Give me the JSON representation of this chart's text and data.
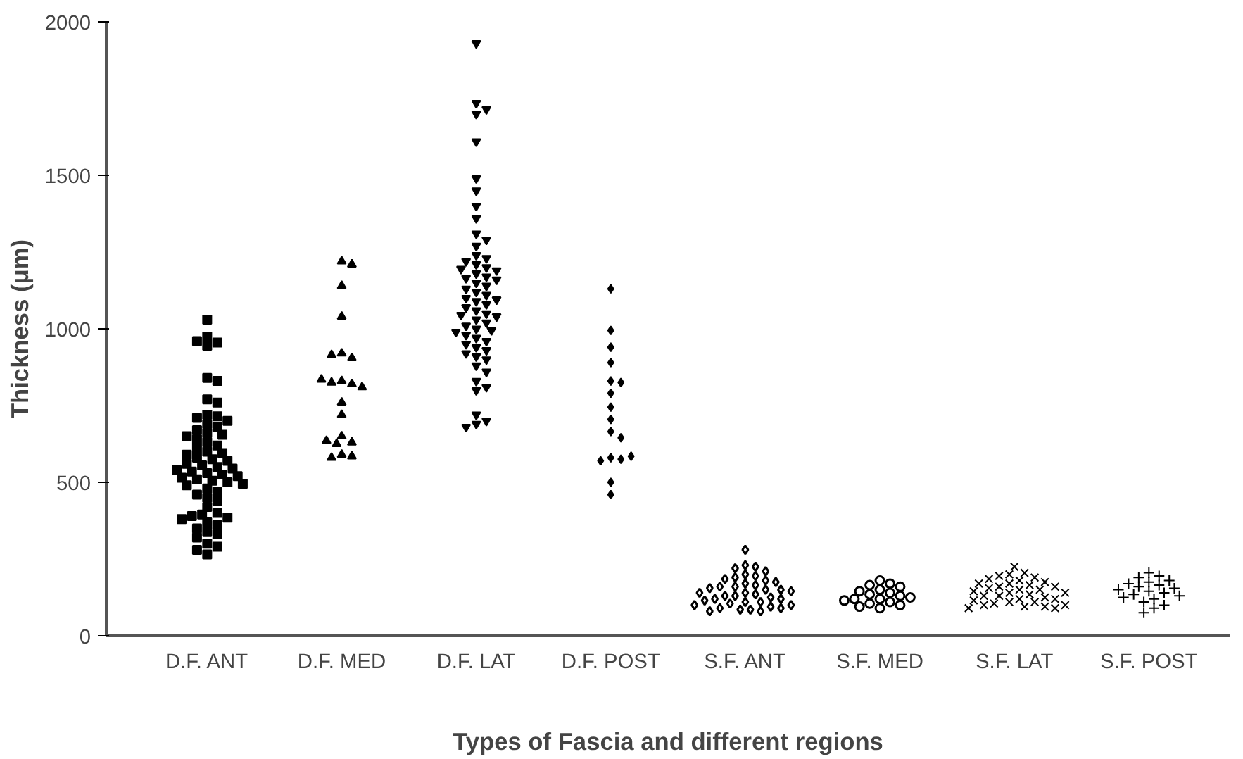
{
  "chart_data": {
    "type": "scatter",
    "xlabel": "Types of Fascia and different regions",
    "ylabel": "Thickness (μm)",
    "categories": [
      "D.F. ANT",
      "D.F. MED",
      "D.F. LAT",
      "D.F. POST",
      "S.F. ANT",
      "S.F. MED",
      "S.F. LAT",
      "S.F. POST"
    ],
    "ylim": [
      0,
      2000
    ],
    "yticks": [
      0,
      500,
      1000,
      1500,
      2000
    ],
    "grid": false,
    "series": [
      {
        "color": "#000000",
        "marker": "square",
        "x": [
          "D.F. ANT",
          "D.F. ANT",
          "D.F. ANT",
          "D.F. ANT",
          "D.F. ANT",
          "D.F. ANT",
          "D.F. ANT",
          "D.F. ANT",
          "D.F. ANT",
          "D.F. ANT",
          "D.F. ANT",
          "D.F. ANT",
          "D.F. ANT",
          "D.F. ANT",
          "D.F. ANT",
          "D.F. ANT",
          "D.F. ANT",
          "D.F. ANT",
          "D.F. ANT",
          "D.F. ANT",
          "D.F. ANT",
          "D.F. ANT",
          "D.F. ANT",
          "D.F. ANT",
          "D.F. ANT",
          "D.F. ANT",
          "D.F. ANT",
          "D.F. ANT",
          "D.F. ANT",
          "D.F. ANT",
          "D.F. ANT",
          "D.F. ANT",
          "D.F. ANT",
          "D.F. ANT",
          "D.F. ANT",
          "D.F. ANT",
          "D.F. ANT",
          "D.F. ANT",
          "D.F. ANT",
          "D.F. ANT",
          "D.F. ANT",
          "D.F. ANT",
          "D.F. ANT",
          "D.F. ANT",
          "D.F. ANT",
          "D.F. ANT",
          "D.F. ANT",
          "D.F. ANT",
          "D.F. ANT",
          "D.F. ANT",
          "D.F. ANT",
          "D.F. ANT",
          "D.F. ANT",
          "D.F. ANT",
          "D.F. ANT",
          "D.F. ANT",
          "D.F. ANT",
          "D.F. ANT",
          "D.F. ANT",
          "D.F. ANT",
          "D.F. ANT",
          "D.F. ANT",
          "D.F. ANT",
          "D.F. ANT",
          "D.F. ANT"
        ],
        "values": [
          1030,
          975,
          955,
          945,
          960,
          840,
          830,
          770,
          760,
          720,
          715,
          710,
          700,
          690,
          680,
          670,
          660,
          655,
          650,
          640,
          630,
          620,
          610,
          600,
          595,
          590,
          580,
          575,
          570,
          560,
          555,
          550,
          545,
          540,
          535,
          530,
          525,
          520,
          515,
          510,
          505,
          500,
          495,
          490,
          480,
          470,
          460,
          450,
          440,
          420,
          400,
          395,
          390,
          385,
          380,
          370,
          360,
          350,
          340,
          330,
          320,
          300,
          290,
          280,
          265
        ]
      },
      {
        "color": "#000000",
        "marker": "triangle",
        "x": [
          "D.F. MED",
          "D.F. MED",
          "D.F. MED",
          "D.F. MED",
          "D.F. MED",
          "D.F. MED",
          "D.F. MED",
          "D.F. MED",
          "D.F. MED",
          "D.F. MED",
          "D.F. MED",
          "D.F. MED",
          "D.F. MED",
          "D.F. MED",
          "D.F. MED",
          "D.F. MED",
          "D.F. MED",
          "D.F. MED",
          "D.F. MED",
          "D.F. MED",
          "D.F. MED"
        ],
        "values": [
          1220,
          1210,
          1140,
          1040,
          920,
          905,
          915,
          830,
          820,
          825,
          810,
          835,
          760,
          720,
          650,
          630,
          625,
          635,
          590,
          585,
          580
        ]
      },
      {
        "color": "#000000",
        "marker": "triangle_down",
        "x": [
          "D.F. LAT",
          "D.F. LAT",
          "D.F. LAT",
          "D.F. LAT",
          "D.F. LAT",
          "D.F. LAT",
          "D.F. LAT",
          "D.F. LAT",
          "D.F. LAT",
          "D.F. LAT",
          "D.F. LAT",
          "D.F. LAT",
          "D.F. LAT",
          "D.F. LAT",
          "D.F. LAT",
          "D.F. LAT",
          "D.F. LAT",
          "D.F. LAT",
          "D.F. LAT",
          "D.F. LAT",
          "D.F. LAT",
          "D.F. LAT",
          "D.F. LAT",
          "D.F. LAT",
          "D.F. LAT",
          "D.F. LAT",
          "D.F. LAT",
          "D.F. LAT",
          "D.F. LAT",
          "D.F. LAT",
          "D.F. LAT",
          "D.F. LAT",
          "D.F. LAT",
          "D.F. LAT",
          "D.F. LAT",
          "D.F. LAT",
          "D.F. LAT",
          "D.F. LAT",
          "D.F. LAT",
          "D.F. LAT",
          "D.F. LAT",
          "D.F. LAT",
          "D.F. LAT",
          "D.F. LAT",
          "D.F. LAT",
          "D.F. LAT",
          "D.F. LAT",
          "D.F. LAT",
          "D.F. LAT",
          "D.F. LAT",
          "D.F. LAT",
          "D.F. LAT",
          "D.F. LAT",
          "D.F. LAT",
          "D.F. LAT",
          "D.F. LAT",
          "D.F. LAT",
          "D.F. LAT",
          "D.F. LAT",
          "D.F. LAT",
          "D.F. LAT"
        ],
        "values": [
          1930,
          1735,
          1715,
          1700,
          1610,
          1490,
          1450,
          1400,
          1360,
          1310,
          1290,
          1270,
          1240,
          1230,
          1220,
          1210,
          1200,
          1195,
          1190,
          1180,
          1170,
          1165,
          1160,
          1150,
          1140,
          1130,
          1120,
          1110,
          1100,
          1095,
          1090,
          1080,
          1070,
          1060,
          1050,
          1045,
          1040,
          1030,
          1020,
          1010,
          1000,
          995,
          990,
          980,
          970,
          960,
          950,
          940,
          930,
          920,
          910,
          900,
          880,
          860,
          830,
          810,
          800,
          720,
          700,
          690,
          680
        ]
      },
      {
        "color": "#000000",
        "marker": "diamond",
        "x": [
          "D.F. POST",
          "D.F. POST",
          "D.F. POST",
          "D.F. POST",
          "D.F. POST",
          "D.F. POST",
          "D.F. POST",
          "D.F. POST",
          "D.F. POST",
          "D.F. POST",
          "D.F. POST",
          "D.F. POST",
          "D.F. POST",
          "D.F. POST",
          "D.F. POST",
          "D.F. POST",
          "D.F. POST"
        ],
        "values": [
          1130,
          995,
          940,
          890,
          830,
          825,
          790,
          745,
          705,
          665,
          645,
          580,
          575,
          570,
          585,
          500,
          460
        ]
      },
      {
        "color": "#000000",
        "marker": "diamond_open",
        "x": [
          "S.F. ANT",
          "S.F. ANT",
          "S.F. ANT",
          "S.F. ANT",
          "S.F. ANT",
          "S.F. ANT",
          "S.F. ANT",
          "S.F. ANT",
          "S.F. ANT",
          "S.F. ANT",
          "S.F. ANT",
          "S.F. ANT",
          "S.F. ANT",
          "S.F. ANT",
          "S.F. ANT",
          "S.F. ANT",
          "S.F. ANT",
          "S.F. ANT",
          "S.F. ANT",
          "S.F. ANT",
          "S.F. ANT",
          "S.F. ANT",
          "S.F. ANT",
          "S.F. ANT",
          "S.F. ANT",
          "S.F. ANT",
          "S.F. ANT",
          "S.F. ANT",
          "S.F. ANT",
          "S.F. ANT",
          "S.F. ANT",
          "S.F. ANT",
          "S.F. ANT",
          "S.F. ANT",
          "S.F. ANT",
          "S.F. ANT",
          "S.F. ANT",
          "S.F. ANT",
          "S.F. ANT",
          "S.F. ANT"
        ],
        "values": [
          280,
          230,
          225,
          220,
          210,
          200,
          195,
          190,
          185,
          180,
          175,
          170,
          165,
          160,
          160,
          155,
          150,
          150,
          145,
          140,
          140,
          135,
          130,
          130,
          125,
          120,
          120,
          115,
          110,
          110,
          105,
          100,
          100,
          95,
          90,
          90,
          85,
          85,
          80,
          80
        ]
      },
      {
        "color": "#000000",
        "marker": "circle_open",
        "x": [
          "S.F. MED",
          "S.F. MED",
          "S.F. MED",
          "S.F. MED",
          "S.F. MED",
          "S.F. MED",
          "S.F. MED",
          "S.F. MED",
          "S.F. MED",
          "S.F. MED",
          "S.F. MED",
          "S.F. MED",
          "S.F. MED",
          "S.F. MED",
          "S.F. MED",
          "S.F. MED",
          "S.F. MED",
          "S.F. MED"
        ],
        "values": [
          180,
          170,
          165,
          160,
          150,
          145,
          140,
          135,
          130,
          125,
          120,
          120,
          115,
          110,
          105,
          100,
          95,
          90
        ]
      },
      {
        "color": "#000000",
        "marker": "x",
        "x": [
          "S.F. LAT",
          "S.F. LAT",
          "S.F. LAT",
          "S.F. LAT",
          "S.F. LAT",
          "S.F. LAT",
          "S.F. LAT",
          "S.F. LAT",
          "S.F. LAT",
          "S.F. LAT",
          "S.F. LAT",
          "S.F. LAT",
          "S.F. LAT",
          "S.F. LAT",
          "S.F. LAT",
          "S.F. LAT",
          "S.F. LAT",
          "S.F. LAT",
          "S.F. LAT",
          "S.F. LAT",
          "S.F. LAT",
          "S.F. LAT",
          "S.F. LAT",
          "S.F. LAT",
          "S.F. LAT",
          "S.F. LAT",
          "S.F. LAT",
          "S.F. LAT",
          "S.F. LAT",
          "S.F. LAT",
          "S.F. LAT",
          "S.F. LAT",
          "S.F. LAT",
          "S.F. LAT",
          "S.F. LAT"
        ],
        "values": [
          225,
          205,
          200,
          195,
          190,
          185,
          180,
          175,
          170,
          170,
          165,
          160,
          160,
          155,
          150,
          150,
          145,
          140,
          140,
          135,
          130,
          130,
          125,
          120,
          120,
          115,
          110,
          110,
          105,
          100,
          100,
          95,
          95,
          90,
          90
        ]
      },
      {
        "color": "#000000",
        "marker": "cross",
        "x": [
          "S.F. POST",
          "S.F. POST",
          "S.F. POST",
          "S.F. POST",
          "S.F. POST",
          "S.F. POST",
          "S.F. POST",
          "S.F. POST",
          "S.F. POST",
          "S.F. POST",
          "S.F. POST",
          "S.F. POST",
          "S.F. POST",
          "S.F. POST",
          "S.F. POST",
          "S.F. POST",
          "S.F. POST",
          "S.F. POST",
          "S.F. POST",
          "S.F. POST"
        ],
        "values": [
          205,
          195,
          190,
          180,
          175,
          170,
          165,
          160,
          155,
          150,
          145,
          140,
          135,
          130,
          125,
          120,
          110,
          100,
          90,
          75
        ]
      }
    ]
  }
}
